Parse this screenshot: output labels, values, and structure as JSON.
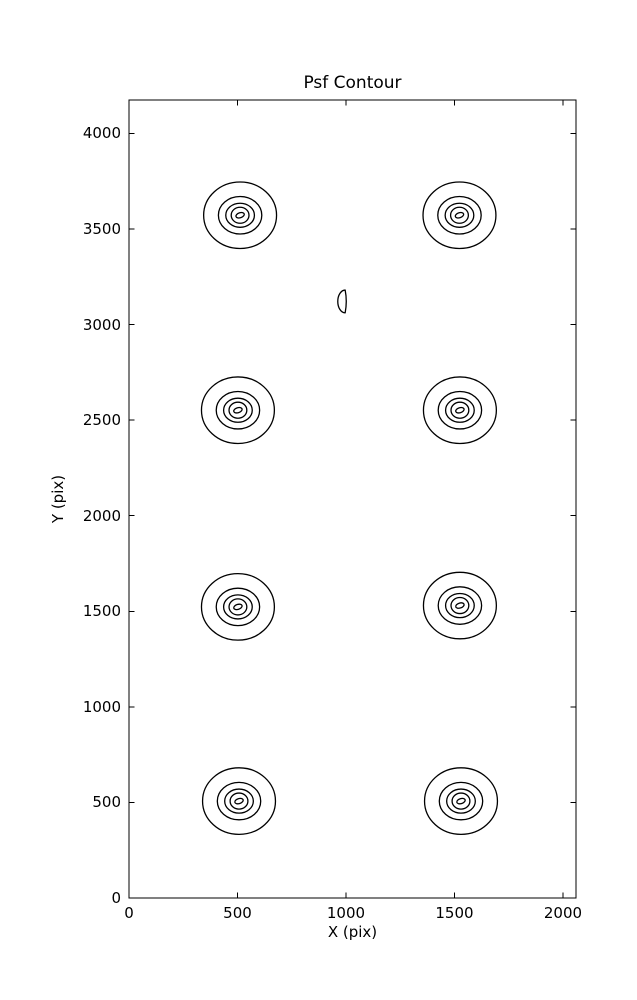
{
  "figure": {
    "background_color": "#ffffff",
    "line_color": "#000000"
  },
  "chart_data": {
    "type": "contour",
    "title": "Psf Contour",
    "xlabel": "X (pix)",
    "ylabel": "Y (pix)",
    "xlim": [
      0,
      2060
    ],
    "ylim": [
      0,
      4175
    ],
    "xticks": [
      0,
      500,
      1000,
      1500,
      2000
    ],
    "yticks": [
      0,
      500,
      1000,
      1500,
      2000,
      2500,
      3000,
      3500,
      4000
    ],
    "grid": false,
    "legend": null,
    "tick_direction": "in",
    "frame": true,
    "psf_clusters": {
      "centers": [
        [
          512,
          3572
        ],
        [
          1523,
          3572
        ],
        [
          502,
          2552
        ],
        [
          1525,
          2552
        ],
        [
          502,
          1523
        ],
        [
          1525,
          1530
        ],
        [
          507,
          507
        ],
        [
          1530,
          507
        ]
      ],
      "ring_radii": [
        [
          168,
          174
        ],
        [
          100,
          98
        ],
        [
          66,
          63
        ],
        [
          41,
          42
        ],
        [
          20,
          13
        ]
      ]
    },
    "partial_contour": {
      "x": 986,
      "y": 3121,
      "rx": 34,
      "ry": 66,
      "shape": "flat-right-semicircle"
    }
  }
}
